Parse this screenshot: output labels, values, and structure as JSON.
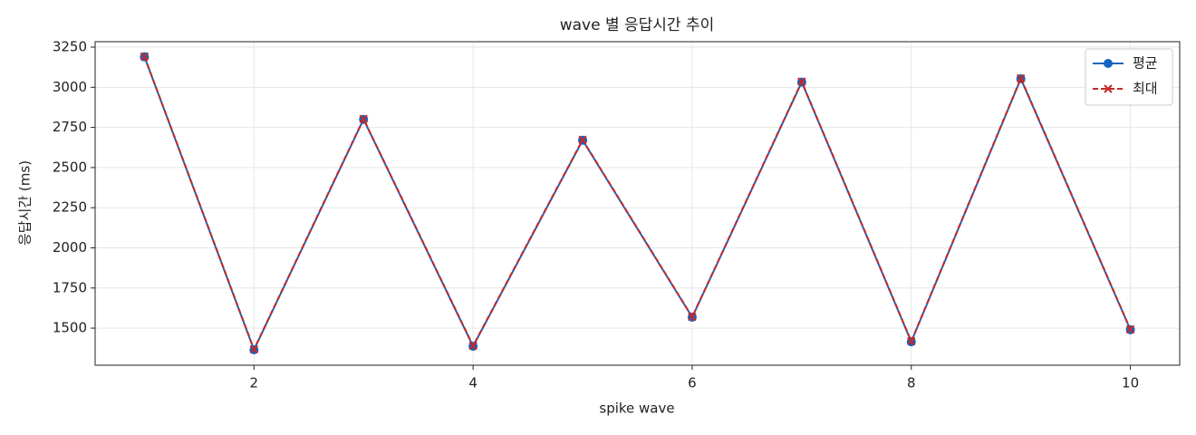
{
  "chart_data": {
    "type": "line",
    "title": "wave 별 응답시간 추이",
    "xlabel": "spike wave",
    "ylabel": "응답시간 (ms)",
    "x": [
      1,
      2,
      3,
      4,
      5,
      6,
      7,
      8,
      9,
      10
    ],
    "series": [
      {
        "name": "평균",
        "color": "#1565c0",
        "marker": "circle",
        "dash": false,
        "values": [
          3190,
          1365,
          2800,
          1387,
          2670,
          1568,
          3032,
          1415,
          3053,
          1490
        ]
      },
      {
        "name": "최대",
        "color": "#c62828",
        "marker": "x",
        "dash": true,
        "values": [
          3192,
          1368,
          2803,
          1390,
          2673,
          1570,
          3035,
          1418,
          3056,
          1492
        ]
      }
    ],
    "xlim": [
      0.55,
      10.45
    ],
    "ylim": [
      1269,
      3284
    ],
    "xticks": [
      2,
      4,
      6,
      8,
      10
    ],
    "yticks": [
      1500,
      1750,
      2000,
      2250,
      2500,
      2750,
      3000,
      3250
    ],
    "grid": true,
    "legend": "upper-right"
  }
}
